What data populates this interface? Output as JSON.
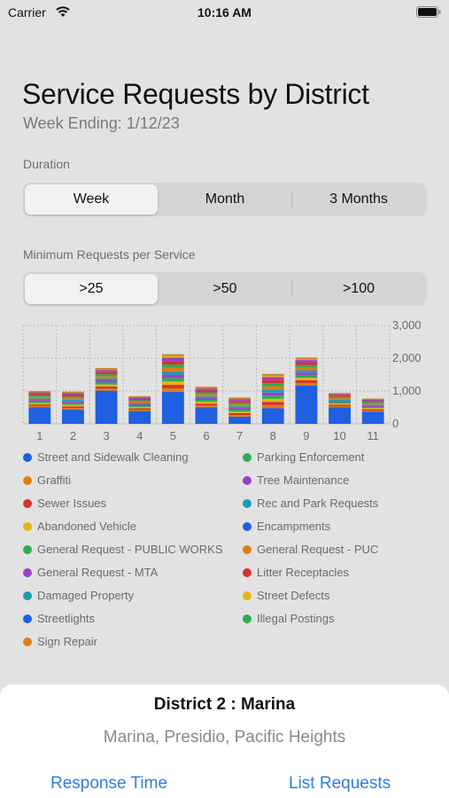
{
  "status": {
    "carrier": "Carrier",
    "time": "10:16 AM"
  },
  "header": {
    "title": "Service Requests by District",
    "subtitle": "Week Ending: 1/12/23"
  },
  "duration": {
    "label": "Duration",
    "options": [
      "Week",
      "Month",
      "3 Months"
    ],
    "selected": "Week"
  },
  "minimum": {
    "label": "Minimum Requests per Service",
    "options": [
      ">25",
      ">50",
      ">100"
    ],
    "selected": ">25"
  },
  "legend": [
    {
      "label": "Street and Sidewalk Cleaning",
      "color": "#1f5fe0"
    },
    {
      "label": "Parking Enforcement",
      "color": "#2eab4f"
    },
    {
      "label": "Graffiti",
      "color": "#e07d10"
    },
    {
      "label": "Tree Maintenance",
      "color": "#9b40c4"
    },
    {
      "label": "Sewer Issues",
      "color": "#d9302b"
    },
    {
      "label": "Rec and Park Requests",
      "color": "#1f9cb0"
    },
    {
      "label": "Abandoned Vehicle",
      "color": "#e4b41a"
    },
    {
      "label": "Encampments",
      "color": "#1f5fe0"
    },
    {
      "label": "General Request - PUBLIC WORKS",
      "color": "#2eab4f"
    },
    {
      "label": "General Request - PUC",
      "color": "#e07d10"
    },
    {
      "label": "General Request - MTA",
      "color": "#9b40c4"
    },
    {
      "label": "Litter Receptacles",
      "color": "#d9302b"
    },
    {
      "label": "Damaged Property",
      "color": "#1f9cb0"
    },
    {
      "label": "Street Defects",
      "color": "#e4b41a"
    },
    {
      "label": "Streetlights",
      "color": "#1f5fe0"
    },
    {
      "label": "Illegal Postings",
      "color": "#2eab4f"
    },
    {
      "label": "Sign Repair",
      "color": "#e07d10"
    }
  ],
  "chart_data": {
    "type": "bar",
    "stacked": true,
    "categories": [
      "1",
      "2",
      "3",
      "4",
      "5",
      "6",
      "7",
      "8",
      "9",
      "10",
      "11"
    ],
    "totals": [
      1000,
      980,
      1700,
      840,
      2120,
      1130,
      800,
      1520,
      2020,
      940,
      770
    ],
    "primary_values": [
      500,
      430,
      1010,
      390,
      980,
      500,
      220,
      480,
      1170,
      500,
      370
    ],
    "yticks": [
      0,
      1000,
      2000,
      3000
    ],
    "ytick_labels": [
      "0",
      "1,000",
      "2,000",
      "3,000"
    ],
    "ylim": [
      0,
      3000
    ],
    "grid": true,
    "segment_colors": [
      "#1f5fe0",
      "#e07d10",
      "#d9302b",
      "#e4b41a",
      "#2eab4f",
      "#9b40c4",
      "#1f9cb0",
      "#e07d10",
      "#2eab4f",
      "#d9302b",
      "#9b40c4",
      "#e4b41a"
    ]
  },
  "sheet": {
    "title": "District 2 :  Marina",
    "subtitle": "Marina, Presidio, Pacific Heights",
    "left_link": "Response Time",
    "right_link": "List Requests"
  }
}
